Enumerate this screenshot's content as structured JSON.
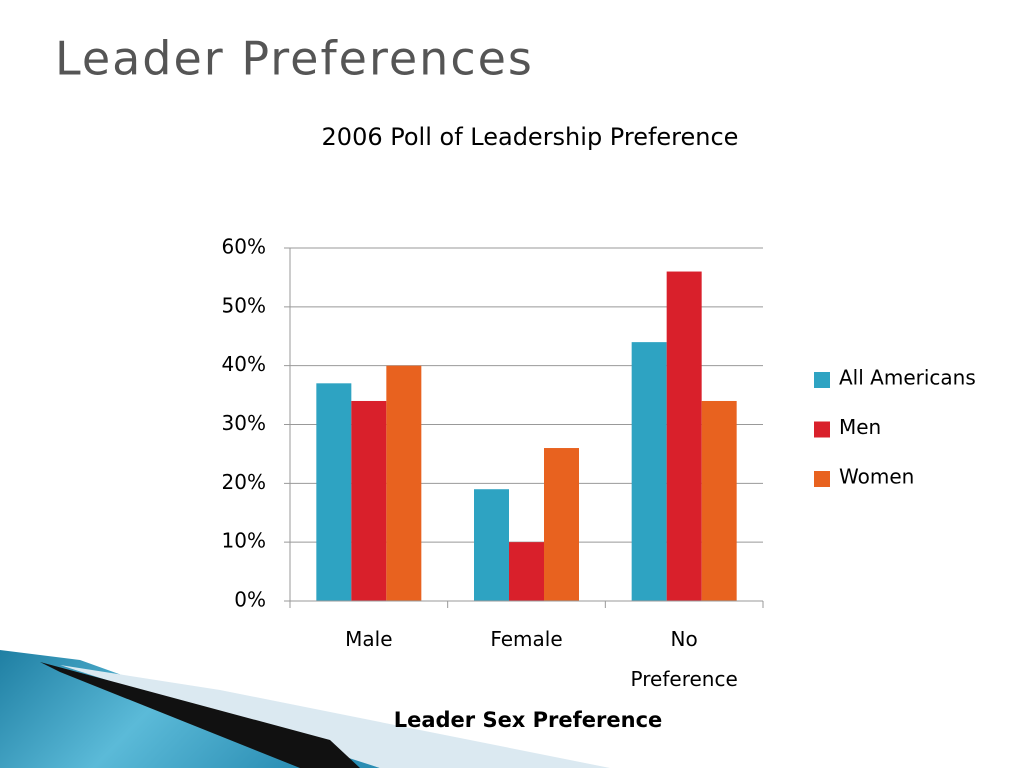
{
  "slide_title": "Leader Preferences",
  "chart_data": {
    "type": "bar",
    "title": "2006 Poll of Leadership Preference",
    "x_label": "Leader Sex Preference",
    "categories": [
      "Male",
      "Female",
      "No Preference"
    ],
    "series": [
      {
        "name": "All Americans",
        "color": "#2ea3c2",
        "values": [
          37,
          19,
          44
        ]
      },
      {
        "name": "Men",
        "color": "#d9202b",
        "values": [
          34,
          10,
          56
        ]
      },
      {
        "name": "Women",
        "color": "#e8621f",
        "values": [
          40,
          26,
          34
        ]
      }
    ],
    "ylim": [
      0,
      60
    ],
    "yticks": [
      {
        "value": 0,
        "label": "0%"
      },
      {
        "value": 10,
        "label": "10%"
      },
      {
        "value": 20,
        "label": "20%"
      },
      {
        "value": 30,
        "label": "30%"
      },
      {
        "value": 40,
        "label": "40%"
      },
      {
        "value": 50,
        "label": "50%"
      },
      {
        "value": 60,
        "label": "60%"
      }
    ],
    "grid": true,
    "legend": "right"
  }
}
